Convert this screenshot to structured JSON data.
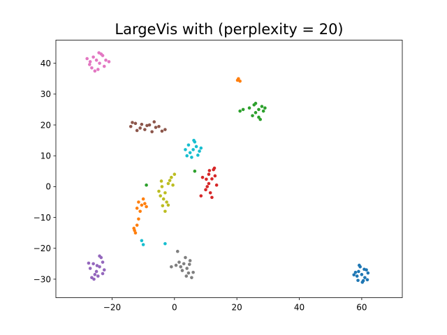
{
  "chart_data": {
    "type": "scatter",
    "title": "LargeVis with (perplexity = 20)",
    "xlabel": "",
    "ylabel": "",
    "xlim": [
      -38,
      73
    ],
    "ylim": [
      -36,
      47.5
    ],
    "xticks": [
      -20,
      0,
      20,
      40,
      60
    ],
    "yticks": [
      -30,
      -20,
      -10,
      0,
      10,
      20,
      30,
      40
    ],
    "xtick_labels": [
      "−20",
      "0",
      "20",
      "40",
      "60"
    ],
    "ytick_labels": [
      "−30",
      "−20",
      "−10",
      "0",
      "10",
      "20",
      "30",
      "40"
    ],
    "grid": false,
    "legend": "none",
    "series": [
      {
        "color": "#1f77b4",
        "points": [
          [
            60.0,
            -28.5
          ],
          [
            59.0,
            -27.5
          ],
          [
            61.0,
            -29.5
          ],
          [
            58.5,
            -29.0
          ],
          [
            61.5,
            -27.0
          ],
          [
            60.5,
            -30.5
          ],
          [
            59.5,
            -26.0
          ],
          [
            62.0,
            -28.0
          ],
          [
            58.0,
            -27.8
          ],
          [
            60.2,
            -31.0
          ],
          [
            57.5,
            -28.6
          ],
          [
            61.8,
            -30.2
          ],
          [
            59.2,
            -25.5
          ],
          [
            60.8,
            -26.8
          ],
          [
            58.8,
            -30.4
          ]
        ]
      },
      {
        "color": "#ff7f0e",
        "points": [
          [
            -10.5,
            -6.0
          ],
          [
            -11.5,
            -5.0
          ],
          [
            -12.0,
            -7.0
          ],
          [
            -9.5,
            -5.5
          ],
          [
            -10.0,
            -4.0
          ],
          [
            -11.0,
            -8.0
          ],
          [
            -9.0,
            -6.5
          ],
          [
            -12.5,
            -15.0
          ],
          [
            -13.0,
            -13.5
          ],
          [
            -12.0,
            -12.5
          ],
          [
            -12.8,
            -14.2
          ],
          [
            -11.5,
            -10.5
          ],
          [
            20.5,
            35.0
          ],
          [
            21.0,
            34.2
          ],
          [
            20.2,
            34.5
          ]
        ]
      },
      {
        "color": "#2ca02c",
        "points": [
          [
            27.0,
            25.0
          ],
          [
            26.0,
            24.0
          ],
          [
            28.0,
            26.0
          ],
          [
            25.5,
            26.5
          ],
          [
            28.5,
            24.5
          ],
          [
            27.0,
            22.5
          ],
          [
            26.0,
            27.0
          ],
          [
            24.0,
            25.5
          ],
          [
            22.0,
            25.0
          ],
          [
            21.0,
            24.5
          ],
          [
            29.0,
            25.5
          ],
          [
            27.5,
            21.8
          ],
          [
            25.0,
            23.0
          ],
          [
            -9.0,
            0.5
          ],
          [
            6.5,
            5.0
          ]
        ]
      },
      {
        "color": "#d62728",
        "points": [
          [
            12.0,
            2.5
          ],
          [
            11.0,
            1.0
          ],
          [
            13.0,
            3.5
          ],
          [
            12.5,
            5.5
          ],
          [
            11.0,
            4.0
          ],
          [
            10.5,
            0.0
          ],
          [
            11.5,
            -2.0
          ],
          [
            12.0,
            -3.5
          ],
          [
            10.0,
            -1.0
          ],
          [
            9.0,
            3.0
          ],
          [
            8.5,
            -3.0
          ],
          [
            13.5,
            0.5
          ],
          [
            12.8,
            6.0
          ],
          [
            11.2,
            5.2
          ],
          [
            10.2,
            2.4
          ]
        ]
      },
      {
        "color": "#9467bd",
        "points": [
          [
            -24.0,
            -26.0
          ],
          [
            -25.0,
            -27.5
          ],
          [
            -23.0,
            -24.5
          ],
          [
            -26.0,
            -25.0
          ],
          [
            -27.0,
            -26.5
          ],
          [
            -24.5,
            -29.0
          ],
          [
            -23.5,
            -23.0
          ],
          [
            -25.5,
            -28.5
          ],
          [
            -22.5,
            -27.0
          ],
          [
            -26.5,
            -29.5
          ],
          [
            -24.0,
            -22.5
          ],
          [
            -27.5,
            -24.8
          ],
          [
            -23.0,
            -28.2
          ],
          [
            -25.8,
            -30.0
          ],
          [
            -24.8,
            -25.6
          ]
        ]
      },
      {
        "color": "#8c564b",
        "points": [
          [
            -14.0,
            19.5
          ],
          [
            -12.5,
            20.5
          ],
          [
            -11.0,
            19.0
          ],
          [
            -9.5,
            18.5
          ],
          [
            -8.0,
            20.0
          ],
          [
            -6.5,
            21.0
          ],
          [
            -5.0,
            19.5
          ],
          [
            -4.0,
            18.0
          ],
          [
            -3.0,
            18.5
          ],
          [
            -13.5,
            20.8
          ],
          [
            -10.5,
            20.2
          ],
          [
            -7.2,
            17.8
          ],
          [
            -6.0,
            19.2
          ],
          [
            -12.0,
            18.2
          ],
          [
            -8.8,
            19.8
          ]
        ]
      },
      {
        "color": "#e377c2",
        "points": [
          [
            -25.0,
            41.0
          ],
          [
            -24.0,
            40.0
          ],
          [
            -26.0,
            42.0
          ],
          [
            -23.0,
            42.5
          ],
          [
            -27.0,
            40.5
          ],
          [
            -24.5,
            38.0
          ],
          [
            -22.0,
            41.0
          ],
          [
            -26.5,
            38.5
          ],
          [
            -23.5,
            43.0
          ],
          [
            -21.0,
            40.5
          ],
          [
            -28.0,
            41.5
          ],
          [
            -25.5,
            37.5
          ],
          [
            -22.5,
            39.0
          ],
          [
            -24.2,
            43.4
          ],
          [
            -27.2,
            39.6
          ]
        ]
      },
      {
        "color": "#7f7f7f",
        "points": [
          [
            3.0,
            -25.0
          ],
          [
            4.0,
            -26.5
          ],
          [
            5.0,
            -24.0
          ],
          [
            2.0,
            -26.0
          ],
          [
            4.5,
            -28.0
          ],
          [
            5.5,
            -29.5
          ],
          [
            3.5,
            -23.0
          ],
          [
            1.5,
            -24.5
          ],
          [
            0.5,
            -25.5
          ],
          [
            -1.0,
            -26.0
          ],
          [
            2.5,
            -27.2
          ],
          [
            4.8,
            -25.2
          ],
          [
            6.0,
            -27.8
          ],
          [
            1.0,
            -21.0
          ],
          [
            3.8,
            -29.0
          ]
        ]
      },
      {
        "color": "#bcbd22",
        "points": [
          [
            -3.0,
            -2.0
          ],
          [
            -4.0,
            0.0
          ],
          [
            -2.0,
            1.0
          ],
          [
            -3.5,
            -4.0
          ],
          [
            -2.5,
            -5.0
          ],
          [
            -1.0,
            3.0
          ],
          [
            0.0,
            4.0
          ],
          [
            -4.5,
            -3.0
          ],
          [
            -5.0,
            -1.5
          ],
          [
            -2.0,
            -6.0
          ],
          [
            -3.0,
            -8.0
          ],
          [
            -1.5,
            2.0
          ],
          [
            -4.2,
            1.8
          ],
          [
            -0.5,
            0.5
          ],
          [
            -3.8,
            -6.2
          ]
        ]
      },
      {
        "color": "#17becf",
        "points": [
          [
            6.0,
            12.0
          ],
          [
            5.0,
            11.0
          ],
          [
            7.0,
            13.0
          ],
          [
            4.5,
            13.5
          ],
          [
            8.0,
            11.5
          ],
          [
            6.5,
            14.5
          ],
          [
            4.0,
            10.0
          ],
          [
            8.5,
            12.5
          ],
          [
            5.5,
            9.5
          ],
          [
            3.5,
            12.0
          ],
          [
            7.5,
            10.2
          ],
          [
            6.2,
            15.0
          ],
          [
            -10.5,
            -17.5
          ],
          [
            -10.0,
            -18.8
          ],
          [
            -3.0,
            -18.5
          ]
        ]
      }
    ]
  }
}
